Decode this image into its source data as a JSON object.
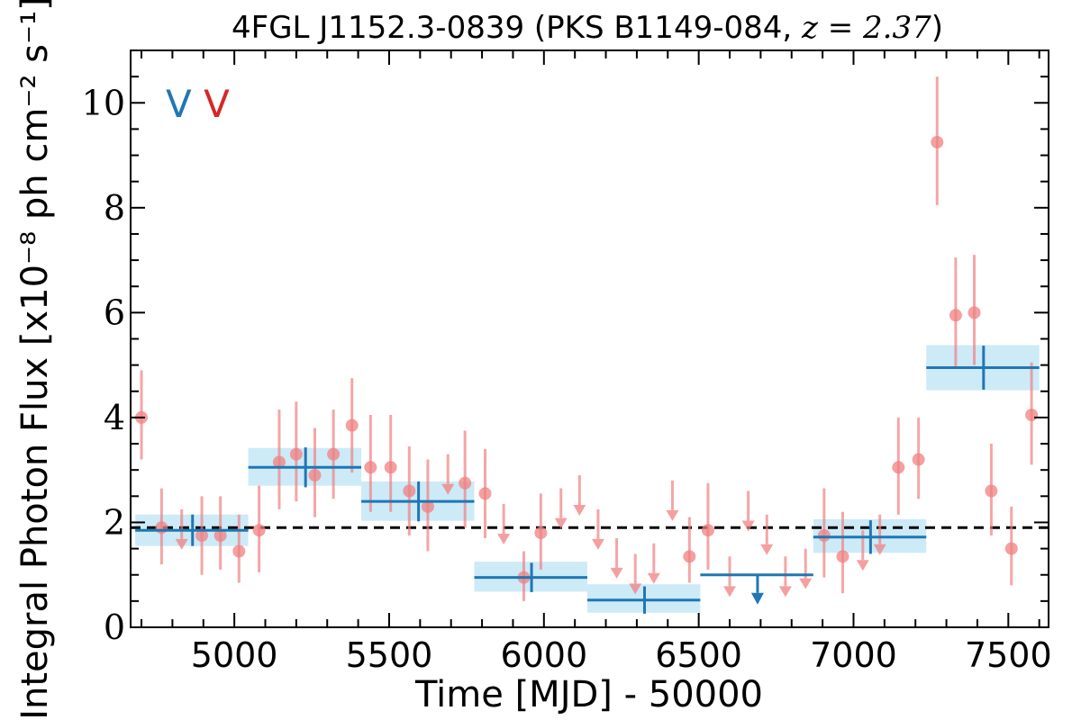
{
  "chart_data": {
    "type": "scatter",
    "title_main": "4FGL J1152.3-0839 (PKS B1149-084, ",
    "title_z": "z = 2.37",
    "title_end": ")",
    "xlabel": "Time [MJD] - 50000",
    "ylabel": "Integral Photon Flux [x10⁻⁸ ph cm⁻² s⁻¹]",
    "xlim": [
      4665,
      7630
    ],
    "ylim": [
      0,
      11
    ],
    "xticks": [
      5000,
      5500,
      6000,
      6500,
      7000,
      7500
    ],
    "xtick_labels": [
      "5000",
      "5500",
      "6000",
      "6500",
      "7000",
      "7500"
    ],
    "yticks": [
      0,
      2,
      4,
      6,
      8,
      10
    ],
    "ytick_labels": [
      "0",
      "2",
      "4",
      "6",
      "8",
      "10"
    ],
    "flags": [
      {
        "text": "V",
        "color": "#1f77b4"
      },
      {
        "text": "V",
        "color": "#d62728"
      }
    ],
    "reference_line": {
      "y": 1.9,
      "style": "dashed",
      "color": "#000000"
    },
    "colors": {
      "monthly_points": "#f08080",
      "yearly_bins": "#1f77b4",
      "yearly_band": "#cdeaf7"
    },
    "series": [
      {
        "kind": "monthly",
        "detections": [
          {
            "x": 4700,
            "y": 4.0,
            "yerr_lo": 0.8,
            "yerr_hi": 0.9
          },
          {
            "x": 4765,
            "y": 1.9,
            "yerr_lo": 0.7,
            "yerr_hi": 0.75
          },
          {
            "x": 4895,
            "y": 1.75,
            "yerr_lo": 0.75,
            "yerr_hi": 0.75
          },
          {
            "x": 4955,
            "y": 1.75,
            "yerr_lo": 0.65,
            "yerr_hi": 0.75
          },
          {
            "x": 5015,
            "y": 1.45,
            "yerr_lo": 0.6,
            "yerr_hi": 0.7
          },
          {
            "x": 5080,
            "y": 1.85,
            "yerr_lo": 0.8,
            "yerr_hi": 0.85
          },
          {
            "x": 5145,
            "y": 3.15,
            "yerr_lo": 0.9,
            "yerr_hi": 1.0
          },
          {
            "x": 5200,
            "y": 3.3,
            "yerr_lo": 0.9,
            "yerr_hi": 1.0
          },
          {
            "x": 5260,
            "y": 2.9,
            "yerr_lo": 0.8,
            "yerr_hi": 0.9
          },
          {
            "x": 5320,
            "y": 3.3,
            "yerr_lo": 0.85,
            "yerr_hi": 0.85
          },
          {
            "x": 5380,
            "y": 3.85,
            "yerr_lo": 0.9,
            "yerr_hi": 0.9
          },
          {
            "x": 5440,
            "y": 3.05,
            "yerr_lo": 0.85,
            "yerr_hi": 1.0
          },
          {
            "x": 5505,
            "y": 3.05,
            "yerr_lo": 0.85,
            "yerr_hi": 1.0
          },
          {
            "x": 5565,
            "y": 2.6,
            "yerr_lo": 0.85,
            "yerr_hi": 0.85
          },
          {
            "x": 5625,
            "y": 2.3,
            "yerr_lo": 0.85,
            "yerr_hi": 0.9
          },
          {
            "x": 5745,
            "y": 2.75,
            "yerr_lo": 0.85,
            "yerr_hi": 1.0
          },
          {
            "x": 5810,
            "y": 2.55,
            "yerr_lo": 0.85,
            "yerr_hi": 0.85
          },
          {
            "x": 5935,
            "y": 0.95,
            "yerr_lo": 0.45,
            "yerr_hi": 0.5
          },
          {
            "x": 5990,
            "y": 1.8,
            "yerr_lo": 0.7,
            "yerr_hi": 0.75
          },
          {
            "x": 6470,
            "y": 1.35,
            "yerr_lo": 0.5,
            "yerr_hi": 0.75
          },
          {
            "x": 6530,
            "y": 1.85,
            "yerr_lo": 0.75,
            "yerr_hi": 0.9
          },
          {
            "x": 6905,
            "y": 1.75,
            "yerr_lo": 0.8,
            "yerr_hi": 0.9
          },
          {
            "x": 6965,
            "y": 1.35,
            "yerr_lo": 0.7,
            "yerr_hi": 0.85
          },
          {
            "x": 7145,
            "y": 3.05,
            "yerr_lo": 0.9,
            "yerr_hi": 0.95
          },
          {
            "x": 7210,
            "y": 3.2,
            "yerr_lo": 0.75,
            "yerr_hi": 0.8
          },
          {
            "x": 7270,
            "y": 9.25,
            "yerr_lo": 1.2,
            "yerr_hi": 1.25
          },
          {
            "x": 7330,
            "y": 5.95,
            "yerr_lo": 1.0,
            "yerr_hi": 1.1
          },
          {
            "x": 7390,
            "y": 6.0,
            "yerr_lo": 1.0,
            "yerr_hi": 1.1
          },
          {
            "x": 7445,
            "y": 2.6,
            "yerr_lo": 0.85,
            "yerr_hi": 0.9
          },
          {
            "x": 7510,
            "y": 1.5,
            "yerr_lo": 0.7,
            "yerr_hi": 0.8
          },
          {
            "x": 7575,
            "y": 4.05,
            "yerr_lo": 0.95,
            "yerr_hi": 1.0
          }
        ],
        "upper_limits": [
          {
            "x": 4830,
            "y": 2.25
          },
          {
            "x": 5690,
            "y": 3.3
          },
          {
            "x": 5870,
            "y": 2.35
          },
          {
            "x": 6055,
            "y": 2.65
          },
          {
            "x": 6115,
            "y": 2.9
          },
          {
            "x": 6175,
            "y": 2.25
          },
          {
            "x": 6235,
            "y": 1.7
          },
          {
            "x": 6295,
            "y": 1.4
          },
          {
            "x": 6355,
            "y": 1.6
          },
          {
            "x": 6415,
            "y": 2.8
          },
          {
            "x": 6600,
            "y": 1.35
          },
          {
            "x": 6660,
            "y": 2.6
          },
          {
            "x": 6720,
            "y": 2.15
          },
          {
            "x": 6780,
            "y": 1.35
          },
          {
            "x": 6845,
            "y": 1.5
          },
          {
            "x": 7030,
            "y": 1.85
          },
          {
            "x": 7085,
            "y": 2.15
          }
        ]
      },
      {
        "kind": "yearly",
        "detections": [
          {
            "x_lo": 4680,
            "x_hi": 5045,
            "x": 4865,
            "y": 1.85,
            "band_lo": 1.55,
            "band_hi": 2.15,
            "yerr": 0.3
          },
          {
            "x_lo": 5045,
            "x_hi": 5410,
            "x": 5230,
            "y": 3.05,
            "band_lo": 2.7,
            "band_hi": 3.42,
            "yerr": 0.38
          },
          {
            "x_lo": 5410,
            "x_hi": 5775,
            "x": 5595,
            "y": 2.4,
            "band_lo": 2.03,
            "band_hi": 2.78,
            "yerr": 0.38
          },
          {
            "x_lo": 5775,
            "x_hi": 6140,
            "x": 5960,
            "y": 0.95,
            "band_lo": 0.68,
            "band_hi": 1.25,
            "yerr": 0.28
          },
          {
            "x_lo": 6140,
            "x_hi": 6505,
            "x": 6325,
            "y": 0.52,
            "band_lo": 0.28,
            "band_hi": 0.82,
            "yerr": 0.26
          },
          {
            "x_lo": 6870,
            "x_hi": 7235,
            "x": 7055,
            "y": 1.72,
            "band_lo": 1.42,
            "band_hi": 2.06,
            "yerr": 0.32
          },
          {
            "x_lo": 7235,
            "x_hi": 7600,
            "x": 7420,
            "y": 4.95,
            "band_lo": 4.52,
            "band_hi": 5.38,
            "yerr": 0.42
          }
        ],
        "upper_limits": [
          {
            "x_lo": 6505,
            "x_hi": 6870,
            "x": 6690,
            "y": 1.0
          }
        ]
      }
    ]
  }
}
